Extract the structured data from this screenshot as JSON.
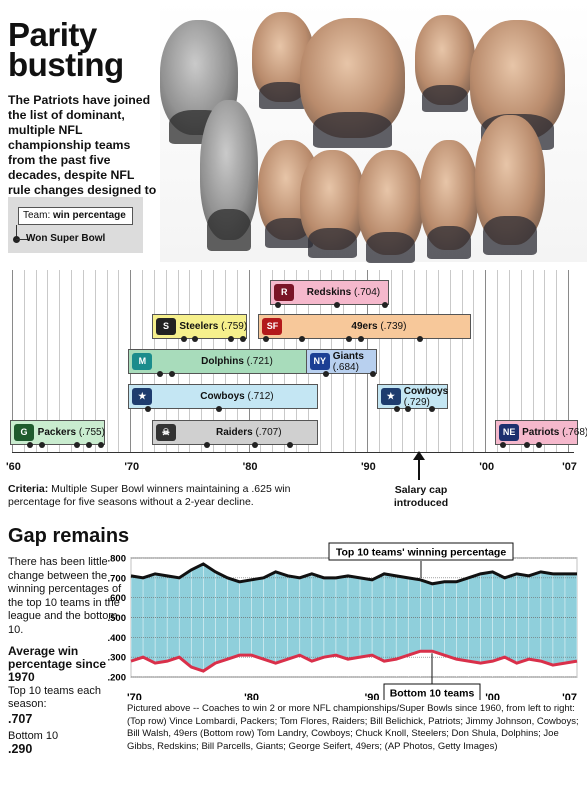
{
  "header": {
    "title_line1": "Parity",
    "title_line2": "busting",
    "intro": "The Patriots have joined the list of dominant, multiple NFL championship teams from the past five decades, despite NFL rule changes designed to achieve parity."
  },
  "key": {
    "label_prefix": "Team:",
    "label_value": "win percentage",
    "won": "Won Super Bowl"
  },
  "timeline": {
    "x_ticks": [
      "'60",
      "'70",
      "'80",
      "'90",
      "'00",
      "'07"
    ],
    "x_tick_years": [
      1960,
      1970,
      1980,
      1990,
      2000,
      2007
    ],
    "dynasties": [
      {
        "team": "Redskins",
        "pct": "(.704)",
        "start": 1982,
        "end": 1991,
        "color": "#f5b8cc",
        "logo": "R",
        "logo_color": "#7a1426",
        "logo_pos": "left",
        "wins": [
          1982,
          1987,
          1991
        ]
      },
      {
        "team": "Steelers",
        "pct": "(.759)",
        "start": 1972,
        "end": 1979,
        "color": "#f6f08c",
        "logo": "S",
        "logo_color": "#222222",
        "logo_pos": "left",
        "wins": [
          1974,
          1975,
          1978,
          1979
        ]
      },
      {
        "team": "49ers",
        "pct": "(.739)",
        "start": 1981,
        "end": 1998,
        "color": "#f7c89a",
        "logo": "SF",
        "logo_color": "#b3191b",
        "logo_pos": "left",
        "wins": [
          1981,
          1984,
          1988,
          1989,
          1994
        ]
      },
      {
        "team": "Dolphins",
        "pct": "(.721)",
        "start": 1970,
        "end": 1985,
        "color": "#a8dcbb",
        "logo": "M",
        "logo_color": "#1b8c8c",
        "logo_pos": "left",
        "wins": [
          1972,
          1973
        ]
      },
      {
        "team": "Giants",
        "pct": "(.684)",
        "start": 1985,
        "end": 1990,
        "color": "#b8d0ef",
        "logo": "NY",
        "logo_color": "#1c3f94",
        "logo_pos": "left",
        "wins": [
          1986,
          1990
        ]
      },
      {
        "team": "Cowboys",
        "pct": "(.712)",
        "start": 1970,
        "end": 1985,
        "color": "#c4e6f3",
        "logo": "★",
        "logo_color": "#1e3c6e",
        "logo_pos": "left",
        "wins": [
          1971,
          1977
        ]
      },
      {
        "team": "Cowboys",
        "pct": "(.729)",
        "start": 1991,
        "end": 1996,
        "color": "#c4e6f3",
        "logo": "★",
        "logo_color": "#1e3c6e",
        "logo_pos": "left",
        "wins": [
          1992,
          1993,
          1995
        ]
      },
      {
        "team": "Packers",
        "pct": "(.755)",
        "start": 1960,
        "end": 1967,
        "color": "#c9eccf",
        "logo": "G",
        "logo_color": "#1f5b2e",
        "logo_pos": "left",
        "wins": [
          1961,
          1962,
          1965,
          1966,
          1967
        ]
      },
      {
        "team": "Raiders",
        "pct": "(.707)",
        "start": 1972,
        "end": 1985,
        "color": "#d0d0d0",
        "logo": "☠",
        "logo_color": "#333333",
        "logo_pos": "left",
        "wins": [
          1976,
          1980,
          1983
        ]
      },
      {
        "team": "Patriots",
        "pct": "(.768)",
        "start": 2001,
        "end": 2007,
        "color": "#f5b8cc",
        "logo": "NE",
        "logo_color": "#1c2f6e",
        "logo_pos": "left",
        "wins": [
          2001,
          2003,
          2004
        ]
      }
    ]
  },
  "criteria": {
    "bold": "Criteria:",
    "text": " Multiple Super Bowl winners maintaining a .625 win percentage for five seasons without a 2-year decline."
  },
  "salary_cap": {
    "label": "Salary cap introduced",
    "year": 1994
  },
  "gap": {
    "heading": "Gap remains",
    "description": "There has been little change between the winning percentages of the top 10 teams in the league and the bottom 10.",
    "avg_heading": "Average win percentage since 1970",
    "top_label": "Top 10 teams each season:",
    "top_value": ".707",
    "bottom_label": "Bottom 10",
    "bottom_value": ".290"
  },
  "chart_data": {
    "type": "area",
    "title": "",
    "x": [
      1970,
      1971,
      1972,
      1973,
      1974,
      1975,
      1976,
      1977,
      1978,
      1979,
      1980,
      1981,
      1982,
      1983,
      1984,
      1985,
      1986,
      1987,
      1988,
      1989,
      1990,
      1991,
      1992,
      1993,
      1994,
      1995,
      1996,
      1997,
      1998,
      1999,
      2000,
      2001,
      2002,
      2003,
      2004,
      2005,
      2006,
      2007
    ],
    "x_ticks": [
      "'70",
      "'80",
      "'90",
      "'00",
      "'07"
    ],
    "x_tick_years": [
      1970,
      1980,
      1990,
      2000,
      2007
    ],
    "y_ticks": [
      ".200",
      ".300",
      ".400",
      ".500",
      ".600",
      ".700",
      ".800"
    ],
    "ylim": [
      0.2,
      0.8
    ],
    "series": [
      {
        "name": "Top 10 teams' winning percentage",
        "color": "#111111",
        "values": [
          0.71,
          0.7,
          0.72,
          0.71,
          0.7,
          0.74,
          0.77,
          0.73,
          0.7,
          0.68,
          0.69,
          0.7,
          0.73,
          0.71,
          0.7,
          0.72,
          0.7,
          0.7,
          0.71,
          0.7,
          0.69,
          0.72,
          0.71,
          0.7,
          0.69,
          0.67,
          0.68,
          0.68,
          0.7,
          0.72,
          0.73,
          0.7,
          0.72,
          0.71,
          0.73,
          0.72,
          0.72,
          0.72
        ]
      },
      {
        "name": "Bottom 10 teams",
        "color": "#d9304a",
        "values": [
          0.28,
          0.3,
          0.27,
          0.28,
          0.3,
          0.25,
          0.23,
          0.27,
          0.29,
          0.31,
          0.31,
          0.29,
          0.27,
          0.29,
          0.31,
          0.28,
          0.3,
          0.31,
          0.29,
          0.3,
          0.31,
          0.28,
          0.29,
          0.31,
          0.33,
          0.33,
          0.31,
          0.29,
          0.28,
          0.27,
          0.28,
          0.3,
          0.27,
          0.29,
          0.28,
          0.26,
          0.27,
          0.28
        ]
      }
    ],
    "fill_color": "#8fcfdb",
    "grid": true
  },
  "caption": "Pictured above -- Coaches to win 2 or more NFL championships/Super Bowls since 1960, from left to right: (Top row) Vince Lombardi, Packers; Tom Flores, Raiders; Bill Belichick, Patriots; Jimmy Johnson, Cowboys; Bill Walsh, 49ers (Bottom row) Tom Landry, Cowboys; Chuck Knoll, Steelers; Don Shula, Dolphins; Joe Gibbs, Redskins; Bill Parcells, Giants; George Seifert, 49ers; (AP Photos, Getty Images)"
}
